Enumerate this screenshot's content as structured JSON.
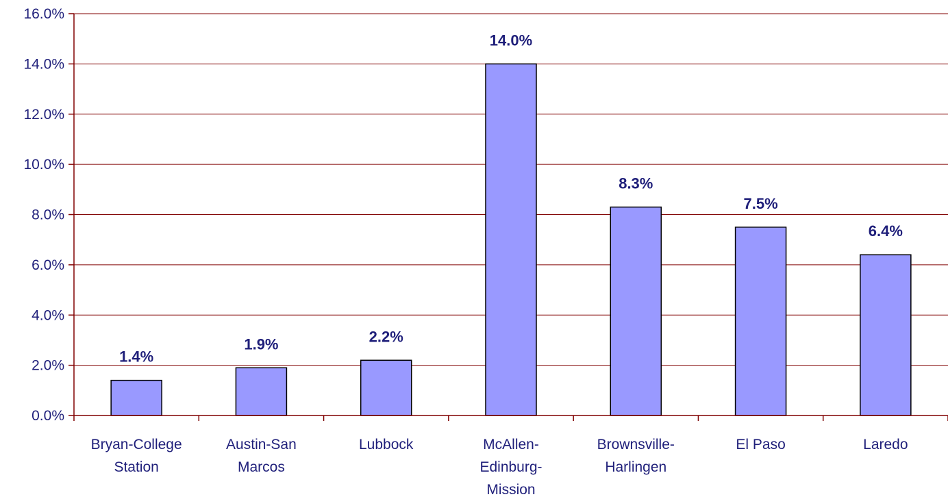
{
  "chart_data": {
    "type": "bar",
    "categories": [
      [
        "Bryan-College",
        "Station"
      ],
      [
        "Austin-San",
        "Marcos"
      ],
      [
        "Lubbock"
      ],
      [
        "McAllen-",
        "Edinburg-",
        "Mission"
      ],
      [
        "Brownsville-",
        "Harlingen"
      ],
      [
        "El Paso"
      ],
      [
        "Laredo"
      ]
    ],
    "values": [
      1.4,
      1.9,
      2.2,
      14.0,
      8.3,
      7.5,
      6.4
    ],
    "data_labels": [
      "1.4%",
      "1.9%",
      "2.2%",
      "14.0%",
      "8.3%",
      "7.5%",
      "6.4%"
    ],
    "y_ticks": [
      0,
      2,
      4,
      6,
      8,
      10,
      12,
      14,
      16
    ],
    "y_tick_labels": [
      "0.0%",
      "2.0%",
      "4.0%",
      "6.0%",
      "8.0%",
      "10.0%",
      "12.0%",
      "14.0%",
      "16.0%"
    ],
    "ylim": [
      0,
      16
    ],
    "title": "",
    "xlabel": "",
    "ylabel": "",
    "grid": true,
    "colors": {
      "bar_fill": "#9999ff",
      "bar_stroke": "#000000",
      "axis": "#800000",
      "grid": "#800000",
      "text": "#1f1f7a"
    }
  }
}
